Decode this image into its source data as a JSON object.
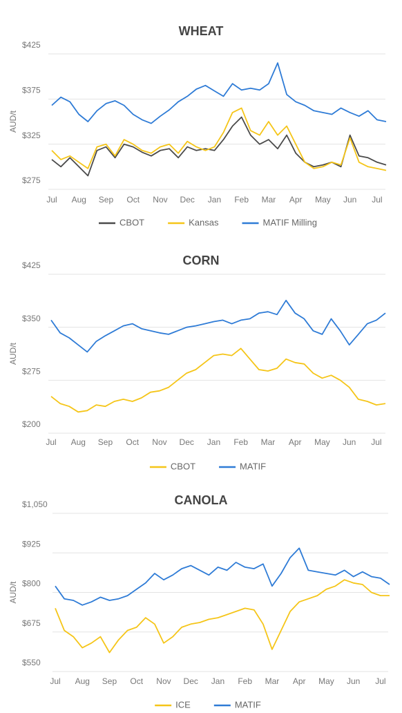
{
  "chart_data": [
    {
      "type": "line",
      "title": "WHEAT",
      "y_label": "AUD/t",
      "legend": "bottom",
      "grid": true,
      "categories": [
        "Jul",
        null,
        null,
        "Aug",
        null,
        null,
        "Sep",
        null,
        null,
        "Oct",
        null,
        null,
        "Nov",
        null,
        null,
        "Dec",
        null,
        null,
        "Jan",
        null,
        null,
        "Feb",
        null,
        null,
        "Mar",
        null,
        null,
        "Apr",
        null,
        null,
        "May",
        null,
        null,
        "Jun",
        null,
        null,
        "Jul",
        null
      ],
      "ylim": [
        275,
        425
      ],
      "yticks": [
        {
          "value": 275,
          "label": "$275"
        },
        {
          "value": 325,
          "label": "$325"
        },
        {
          "value": 375,
          "label": "$375"
        },
        {
          "value": 425,
          "label": "$425"
        }
      ],
      "series": [
        {
          "name": "CBOT",
          "color": "#4a4a4a",
          "values": [
            308,
            300,
            310,
            300,
            290,
            318,
            322,
            310,
            325,
            322,
            316,
            312,
            318,
            320,
            310,
            322,
            318,
            320,
            318,
            330,
            345,
            355,
            335,
            325,
            330,
            320,
            335,
            315,
            305,
            300,
            302,
            305,
            300,
            335,
            312,
            310,
            305,
            302
          ]
        },
        {
          "name": "Kansas",
          "color": "#f5c518",
          "values": [
            318,
            308,
            312,
            305,
            298,
            322,
            325,
            312,
            330,
            325,
            318,
            315,
            322,
            325,
            315,
            328,
            322,
            318,
            322,
            338,
            360,
            365,
            340,
            335,
            350,
            335,
            345,
            325,
            305,
            298,
            300,
            305,
            302,
            332,
            305,
            300,
            298,
            296
          ]
        },
        {
          "name": "MATIF Milling",
          "color": "#2e7bd6",
          "values": [
            368,
            377,
            372,
            358,
            350,
            362,
            370,
            373,
            368,
            358,
            352,
            348,
            356,
            363,
            372,
            378,
            386,
            390,
            384,
            378,
            392,
            385,
            387,
            385,
            392,
            415,
            380,
            372,
            368,
            362,
            360,
            358,
            365,
            360,
            356,
            362,
            352,
            350
          ]
        }
      ]
    },
    {
      "type": "line",
      "title": "CORN",
      "y_label": "AUD/t",
      "legend": "bottom",
      "grid": true,
      "categories": [
        "Jul",
        null,
        null,
        "Aug",
        null,
        null,
        "Sep",
        null,
        null,
        "Oct",
        null,
        null,
        "Nov",
        null,
        null,
        "Dec",
        null,
        null,
        "Jan",
        null,
        null,
        "Feb",
        null,
        null,
        "Mar",
        null,
        null,
        "Apr",
        null,
        null,
        "May",
        null,
        null,
        "Jun",
        null,
        null,
        "Jul",
        null
      ],
      "ylim": [
        200,
        425
      ],
      "yticks": [
        {
          "value": 200,
          "label": "$200"
        },
        {
          "value": 275,
          "label": "$275"
        },
        {
          "value": 350,
          "label": "$350"
        },
        {
          "value": 425,
          "label": "$425"
        }
      ],
      "series": [
        {
          "name": "CBOT",
          "color": "#f5c518",
          "values": [
            252,
            242,
            238,
            230,
            232,
            240,
            238,
            245,
            248,
            245,
            250,
            258,
            260,
            265,
            275,
            285,
            290,
            300,
            310,
            312,
            310,
            320,
            305,
            290,
            288,
            292,
            305,
            300,
            298,
            285,
            278,
            282,
            275,
            265,
            248,
            245,
            240,
            242
          ]
        },
        {
          "name": "MATIF",
          "color": "#2e7bd6",
          "values": [
            360,
            342,
            335,
            325,
            315,
            330,
            338,
            345,
            352,
            355,
            348,
            345,
            342,
            340,
            345,
            350,
            352,
            355,
            358,
            360,
            355,
            360,
            362,
            370,
            372,
            368,
            388,
            370,
            362,
            345,
            340,
            362,
            345,
            325,
            340,
            355,
            360,
            370
          ]
        }
      ]
    },
    {
      "type": "line",
      "title": "CANOLA",
      "y_label": "AUD/t",
      "legend": "bottom",
      "grid": true,
      "categories": [
        "Jul",
        null,
        null,
        "Aug",
        null,
        null,
        "Sep",
        null,
        null,
        "Oct",
        null,
        null,
        "Nov",
        null,
        null,
        "Dec",
        null,
        null,
        "Jan",
        null,
        null,
        "Feb",
        null,
        null,
        "Mar",
        null,
        null,
        "Apr",
        null,
        null,
        "May",
        null,
        null,
        "Jun",
        null,
        null,
        "Jul",
        null
      ],
      "ylim": [
        550,
        1050
      ],
      "yticks": [
        {
          "value": 550,
          "label": "$550"
        },
        {
          "value": 675,
          "label": "$675"
        },
        {
          "value": 800,
          "label": "$800"
        },
        {
          "value": 925,
          "label": "$925"
        },
        {
          "value": 1050,
          "label": "$1,050"
        }
      ],
      "series": [
        {
          "name": "ICE",
          "color": "#f5c518",
          "values": [
            750,
            680,
            660,
            625,
            640,
            660,
            610,
            650,
            680,
            690,
            720,
            700,
            640,
            660,
            690,
            700,
            705,
            715,
            720,
            730,
            740,
            750,
            745,
            700,
            620,
            680,
            740,
            770,
            780,
            790,
            810,
            820,
            840,
            830,
            825,
            800,
            790,
            790
          ]
        },
        {
          "name": "MATIF",
          "color": "#2e7bd6",
          "values": [
            820,
            780,
            775,
            760,
            770,
            785,
            775,
            780,
            790,
            810,
            830,
            860,
            840,
            855,
            875,
            885,
            870,
            855,
            880,
            870,
            895,
            880,
            875,
            890,
            820,
            860,
            910,
            940,
            870,
            865,
            860,
            855,
            870,
            850,
            865,
            850,
            845,
            825
          ]
        }
      ]
    }
  ]
}
